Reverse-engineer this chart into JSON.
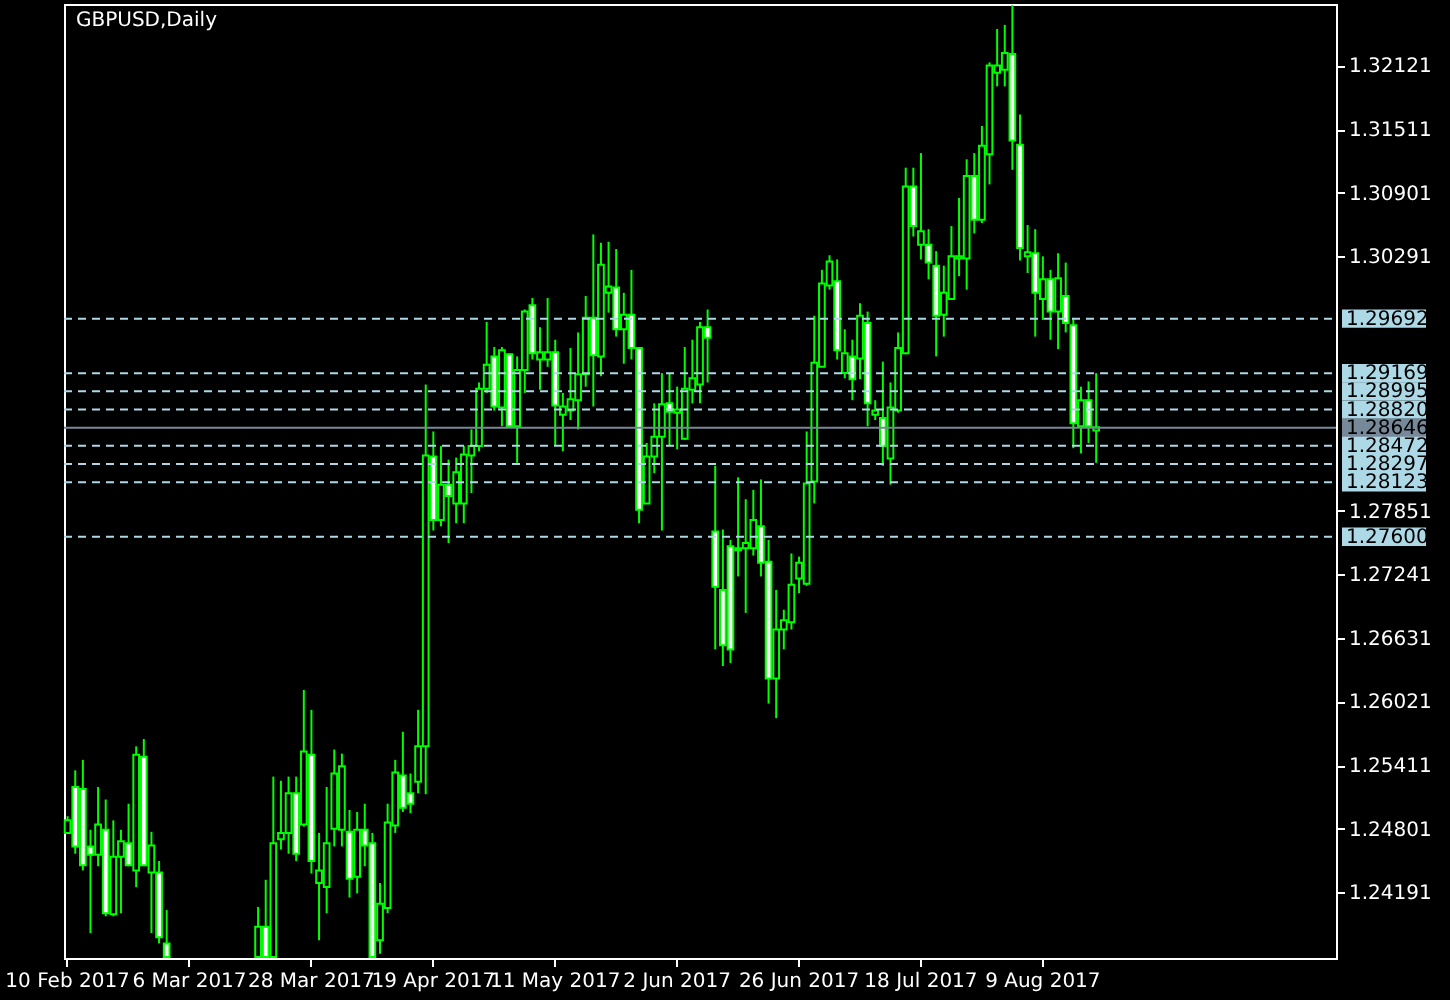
{
  "chart_data": {
    "type": "candlestick",
    "title": "GBPUSD,Daily",
    "categories": [
      "10 Feb 2017",
      null,
      null,
      null,
      null,
      null,
      null,
      null,
      null,
      null,
      null,
      null,
      null,
      null,
      null,
      null,
      "6 Mar 2017",
      null,
      null,
      null,
      null,
      null,
      null,
      null,
      null,
      null,
      null,
      null,
      null,
      null,
      null,
      null,
      "28 Mar 2017",
      null,
      null,
      null,
      null,
      null,
      null,
      null,
      null,
      null,
      null,
      null,
      null,
      null,
      null,
      null,
      "19 Apr 2017",
      null,
      null,
      null,
      null,
      null,
      null,
      null,
      null,
      null,
      null,
      null,
      null,
      null,
      null,
      null,
      "11 May 2017",
      null,
      null,
      null,
      null,
      null,
      null,
      null,
      null,
      null,
      null,
      null,
      null,
      null,
      null,
      null,
      "2 Jun 2017",
      null,
      null,
      null,
      null,
      null,
      null,
      null,
      null,
      null,
      null,
      null,
      null,
      null,
      null,
      null,
      "26 Jun 2017",
      null,
      null,
      null,
      null,
      null,
      null,
      null,
      null,
      null,
      null,
      null,
      null,
      null,
      null,
      null,
      "18 Jul 2017",
      null,
      null,
      null,
      null,
      null,
      null,
      null,
      null,
      null,
      null,
      null,
      null,
      null,
      null,
      null,
      "9 Aug 2017",
      null,
      null,
      null,
      null,
      null,
      null,
      null,
      null,
      null,
      null,
      null,
      null,
      null,
      null,
      null,
      null,
      null,
      null,
      null,
      null,
      null,
      null,
      null,
      null,
      null,
      null,
      null,
      null,
      null,
      null,
      null,
      null,
      null,
      null,
      null,
      null,
      null,
      null
    ],
    "series": [
      {
        "color": "#00ff00",
        "ohlc": [
          [
            1.2476,
            1.2492,
            1.2476,
            1.2488
          ],
          [
            1.252,
            1.2536,
            1.2456,
            1.2463
          ],
          [
            1.2518,
            1.2546,
            1.244,
            1.2445
          ],
          [
            1.2463,
            1.2479,
            1.238,
            1.2455
          ],
          [
            1.2455,
            1.252,
            1.2444,
            1.2484
          ],
          [
            1.2479,
            1.2508,
            1.2396,
            1.2399
          ],
          [
            1.2398,
            1.2488,
            1.2396,
            1.2453
          ],
          [
            1.2453,
            1.2479,
            1.2399,
            1.2468
          ],
          [
            1.2466,
            1.2504,
            1.2444,
            1.2445
          ],
          [
            1.244,
            1.2559,
            1.2424,
            1.2551
          ],
          [
            1.2549,
            1.2566,
            1.2444,
            1.2445
          ],
          [
            1.2438,
            1.2477,
            1.238,
            1.2464
          ],
          [
            1.2438,
            1.2449,
            1.237,
            1.2376
          ],
          [
            1.237,
            1.2402,
            1.2357,
            1.2357
          ],
          null,
          null,
          null,
          null,
          null,
          null,
          null,
          null,
          null,
          null,
          null,
          [
            1.2357,
            1.2405,
            1.2357,
            1.2386
          ],
          [
            1.2386,
            1.2431,
            1.2357,
            1.2357
          ],
          [
            1.2357,
            1.253,
            1.2357,
            1.2466
          ],
          [
            1.247,
            1.2526,
            1.246,
            1.2476
          ],
          [
            1.2476,
            1.253,
            1.2456,
            1.2514
          ],
          [
            1.2514,
            1.253,
            1.2449,
            1.2456
          ],
          [
            1.2484,
            1.2613,
            1.2482,
            1.2554
          ],
          [
            1.2551,
            1.2594,
            1.2437,
            1.2449
          ],
          [
            1.2428,
            1.2476,
            1.2373,
            1.244
          ],
          [
            1.2424,
            1.252,
            1.2399,
            1.2466
          ],
          [
            1.248,
            1.2556,
            1.2463,
            1.2533
          ],
          [
            1.2479,
            1.2552,
            1.2463,
            1.254
          ],
          [
            1.2477,
            1.2498,
            1.2414,
            1.2432
          ],
          [
            1.2434,
            1.2496,
            1.2418,
            1.2479
          ],
          [
            1.2479,
            1.2504,
            1.2444,
            1.2464
          ],
          [
            1.2466,
            1.2476,
            1.2357,
            1.2357
          ],
          [
            1.2373,
            1.2428,
            1.236,
            1.2408
          ],
          [
            1.2404,
            1.2504,
            1.2399,
            1.2486
          ],
          [
            1.2483,
            1.2546,
            1.2476,
            1.2534
          ],
          [
            1.2531,
            1.2573,
            1.2496,
            1.25
          ],
          [
            1.2514,
            1.2533,
            1.2495,
            1.2504
          ],
          [
            1.2525,
            1.2594,
            1.2514,
            1.2559
          ],
          [
            1.2559,
            1.2906,
            1.2513,
            1.2838
          ],
          [
            1.2837,
            1.2861,
            1.2766,
            1.2776
          ],
          [
            1.2776,
            1.2847,
            1.277,
            1.281
          ],
          [
            1.281,
            1.2834,
            1.2754,
            1.2799
          ],
          [
            1.2792,
            1.2836,
            1.2773,
            1.2822
          ],
          [
            1.2792,
            1.2847,
            1.2773,
            1.2839
          ],
          [
            1.2838,
            1.2863,
            1.2802,
            1.2847
          ],
          [
            1.2847,
            1.2908,
            1.2842,
            1.2902
          ],
          [
            1.2902,
            1.2966,
            1.2898,
            1.2925
          ],
          [
            1.2933,
            1.2942,
            1.2881,
            1.2885
          ],
          [
            1.2884,
            1.2942,
            1.2866,
            1.2939
          ],
          [
            1.2935,
            1.2936,
            1.2866,
            1.2866
          ],
          [
            1.2866,
            1.2933,
            1.2831,
            1.292
          ],
          [
            1.292,
            1.2978,
            1.2898,
            1.2976
          ],
          [
            1.2982,
            1.2989,
            1.293,
            1.2936
          ],
          [
            1.293,
            1.2961,
            1.2901,
            1.2937
          ],
          [
            1.293,
            1.2989,
            1.2923,
            1.2937
          ],
          [
            1.2937,
            1.2949,
            1.2847,
            1.2886
          ],
          [
            1.2877,
            1.2898,
            1.2842,
            1.2885
          ],
          [
            1.2881,
            1.2941,
            1.2872,
            1.2892
          ],
          [
            1.2891,
            1.2956,
            1.2863,
            1.2916
          ],
          [
            1.2916,
            1.2991,
            1.2904,
            1.297
          ],
          [
            1.297,
            1.305,
            1.2885,
            1.2934
          ],
          [
            1.2933,
            1.3042,
            1.2914,
            1.3021
          ],
          [
            1.2994,
            1.3043,
            1.2975,
            1.3
          ],
          [
            1.2999,
            1.3036,
            1.2952,
            1.2959
          ],
          [
            1.2959,
            1.2994,
            1.2926,
            1.2973
          ],
          [
            1.2973,
            1.3016,
            1.293,
            1.2941
          ],
          [
            1.2941,
            1.2942,
            1.2773,
            1.2786
          ],
          [
            1.2792,
            1.285,
            1.2792,
            1.2837
          ],
          [
            1.2837,
            1.2888,
            1.2821,
            1.2856
          ],
          [
            1.2856,
            1.2917,
            1.2766,
            1.2887
          ],
          [
            1.2888,
            1.2917,
            1.2847,
            1.288
          ],
          [
            1.2879,
            1.2904,
            1.2844,
            1.2882
          ],
          [
            1.2854,
            1.2942,
            1.2853,
            1.2902
          ],
          [
            1.2901,
            1.2949,
            1.2888,
            1.2912
          ],
          [
            1.2906,
            1.2966,
            1.2888,
            1.2961
          ],
          [
            1.2961,
            1.2978,
            1.2908,
            1.2951
          ],
          [
            1.2765,
            1.2828,
            1.2652,
            1.2712
          ],
          [
            1.2709,
            1.2767,
            1.2636,
            1.2656
          ],
          [
            1.2751,
            1.2757,
            1.2639,
            1.2652
          ],
          [
            1.2747,
            1.2817,
            1.2722,
            1.2749
          ],
          [
            1.2749,
            1.2796,
            1.2687,
            1.2754
          ],
          [
            1.2749,
            1.2805,
            1.2742,
            1.2776
          ],
          [
            1.277,
            1.2815,
            1.2722,
            1.2735
          ],
          [
            1.2736,
            1.2757,
            1.26,
            1.2624
          ],
          [
            1.2624,
            1.2709,
            1.2586,
            1.2671
          ],
          [
            1.2671,
            1.269,
            1.2652,
            1.268
          ],
          [
            1.2678,
            1.2744,
            1.2671,
            1.2714
          ],
          [
            1.272,
            1.2741,
            1.2706,
            1.2735
          ],
          [
            1.2715,
            1.2861,
            1.2713,
            1.2811
          ],
          [
            1.2813,
            1.2972,
            1.2792,
            1.2927
          ],
          [
            1.2923,
            1.3016,
            1.2923,
            1.3003
          ],
          [
            1.3001,
            1.303,
            1.2997,
            1.3024
          ],
          [
            1.3005,
            1.3026,
            1.293,
            1.2939
          ],
          [
            1.2917,
            1.2959,
            1.2912,
            1.2936
          ],
          [
            1.2933,
            1.2949,
            1.2891,
            1.2911
          ],
          [
            1.2931,
            1.2984,
            1.2911,
            1.2972
          ],
          [
            1.2965,
            1.2976,
            1.2866,
            1.2888
          ],
          [
            1.2877,
            1.2891,
            1.2872,
            1.2881
          ],
          [
            1.2874,
            1.2928,
            1.2828,
            1.2847
          ],
          [
            1.2835,
            1.2908,
            1.281,
            1.2884
          ],
          [
            1.2881,
            1.2956,
            1.2879,
            1.2941
          ],
          [
            1.2936,
            1.3114,
            1.2935,
            1.3096
          ],
          [
            1.3096,
            1.3114,
            1.3048,
            1.3058
          ],
          [
            1.304,
            1.3128,
            1.3026,
            1.3053
          ],
          [
            1.304,
            1.3055,
            1.3007,
            1.3023
          ],
          [
            1.302,
            1.3034,
            1.2933,
            1.2972
          ],
          [
            1.2973,
            1.302,
            1.2952,
            1.2994
          ],
          [
            1.2988,
            1.3058,
            1.2988,
            1.3029
          ],
          [
            1.3027,
            1.3085,
            1.301,
            1.3029
          ],
          [
            1.3027,
            1.3122,
            1.2997,
            1.3106
          ],
          [
            1.3106,
            1.3128,
            1.3051,
            1.3064
          ],
          [
            1.3064,
            1.3154,
            1.3061,
            1.3135
          ],
          [
            1.3127,
            1.3215,
            1.3098,
            1.3212
          ],
          [
            1.3205,
            1.3247,
            1.3192,
            1.3212
          ],
          [
            1.3208,
            1.3251,
            1.3192,
            1.3224
          ],
          [
            1.3223,
            1.327,
            1.3112,
            1.314
          ],
          [
            1.3136,
            1.3165,
            1.3025,
            1.3037
          ],
          [
            1.3029,
            1.3059,
            1.3013,
            1.3033
          ],
          [
            1.3032,
            1.3055,
            1.2952,
            1.2994
          ],
          [
            1.2988,
            1.3029,
            1.2968,
            1.3007
          ],
          [
            1.3007,
            1.3016,
            1.2949,
            1.2976
          ],
          [
            1.2976,
            1.3032,
            1.294,
            1.3008
          ],
          [
            1.2991,
            1.3023,
            1.2956,
            1.2965
          ],
          [
            1.2963,
            1.297,
            1.2845,
            1.2869
          ],
          [
            1.2866,
            1.2904,
            1.284,
            1.2891
          ],
          [
            1.2891,
            1.2909,
            1.285,
            1.2866
          ],
          [
            1.2862,
            1.2917,
            1.2831,
            1.2865
          ],
          null,
          null,
          null,
          null,
          null,
          null,
          null,
          null,
          null,
          null,
          null,
          null,
          null,
          null,
          null,
          null,
          null,
          null,
          null,
          null,
          null,
          null,
          null,
          null,
          null,
          null,
          null,
          null,
          null,
          null,
          null
        ]
      }
    ],
    "ylim": [
      1.2356,
      1.3271
    ],
    "yticks": [
      1.32121,
      1.31511,
      1.30901,
      1.30291,
      1.27851,
      1.27241,
      1.26631,
      1.26021,
      1.25411,
      1.24801,
      1.24191
    ],
    "ref_lines": [
      {
        "axis": "y",
        "value": 1.29692,
        "label": "1.29692",
        "color": "#add8e6",
        "line_style": "dashed"
      },
      {
        "axis": "y",
        "value": 1.29169,
        "label": "1.29169",
        "color": "#add8e6",
        "line_style": "dashed"
      },
      {
        "axis": "y",
        "value": 1.28995,
        "label": "1.28995",
        "color": "#add8e6",
        "line_style": "dashed"
      },
      {
        "axis": "y",
        "value": 1.2882,
        "label": "1.28820",
        "color": "#add8e6",
        "line_style": "dashed"
      },
      {
        "axis": "y",
        "value": 1.28646,
        "label": "1.28646",
        "color": "#778899",
        "line_style": "solid"
      },
      {
        "axis": "y",
        "value": 1.28472,
        "label": "1.28472",
        "color": "#add8e6",
        "line_style": "dashed"
      },
      {
        "axis": "y",
        "value": 1.28297,
        "label": "1.28297",
        "color": "#add8e6",
        "line_style": "dashed"
      },
      {
        "axis": "y",
        "value": 1.28123,
        "label": "1.28123",
        "color": "#add8e6",
        "line_style": "dashed"
      },
      {
        "axis": "y",
        "value": 1.276,
        "label": "1.27600",
        "color": "#add8e6",
        "line_style": "dashed"
      }
    ]
  }
}
